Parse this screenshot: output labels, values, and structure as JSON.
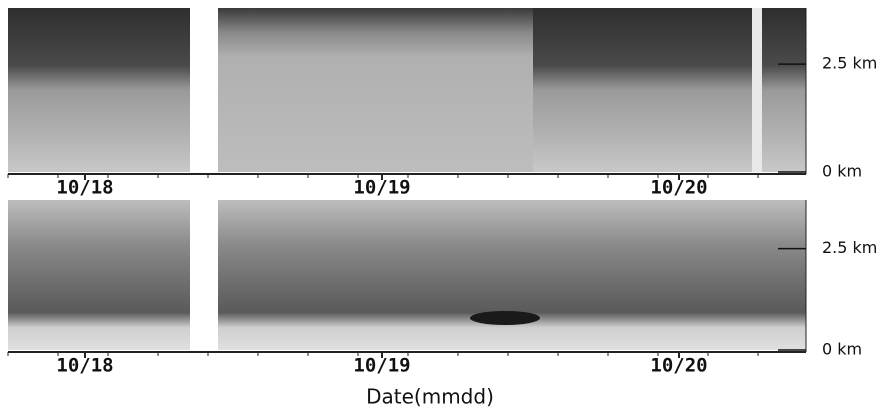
{
  "chart_data": [
    {
      "type": "heatmap",
      "xticks": [
        "10/18",
        "10/19",
        "10/20"
      ],
      "ylim": [
        0,
        3.8
      ],
      "yticks": [
        {
          "value": 2.5,
          "label": "2.5 km"
        },
        {
          "value": 0,
          "label": "0 km"
        }
      ]
    },
    {
      "type": "heatmap",
      "xticks": [
        "10/18",
        "10/19",
        "10/20"
      ],
      "ylim": [
        0,
        3.7
      ],
      "yticks": [
        {
          "value": 2.5,
          "label": "2.5 km"
        },
        {
          "value": 0,
          "label": "0 km"
        }
      ],
      "xlabel": "Date(mmdd)"
    }
  ]
}
